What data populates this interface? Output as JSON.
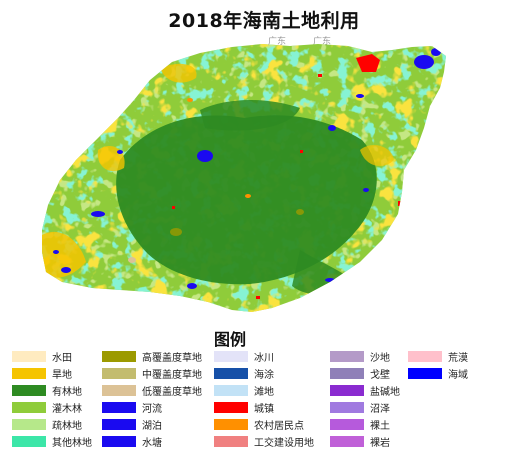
{
  "title": "2018年海南土地利用",
  "top_faint_labels": [
    "广东",
    "广东"
  ],
  "legend": {
    "title": "图例",
    "columns": [
      [
        {
          "label": "水田",
          "color": "#FFEBC0"
        },
        {
          "label": "旱地",
          "color": "#F5C400"
        },
        {
          "label": "有林地",
          "color": "#2E8B22"
        },
        {
          "label": "灌木林",
          "color": "#8FCC3A"
        },
        {
          "label": "疏林地",
          "color": "#B6E88A"
        },
        {
          "label": "其他林地",
          "color": "#3CE6A8"
        }
      ],
      [
        {
          "label": "高覆盖度草地",
          "color": "#9C9A00"
        },
        {
          "label": "中覆盖度草地",
          "color": "#C3BC6E"
        },
        {
          "label": "低覆盖度草地",
          "color": "#DCC296"
        },
        {
          "label": "河流",
          "color": "#1A0AF0"
        },
        {
          "label": "湖泊",
          "color": "#1A0AF0"
        },
        {
          "label": "水塘",
          "color": "#1A0AF0"
        }
      ],
      [
        {
          "label": "冰川",
          "color": "#E3E3F8"
        },
        {
          "label": "海涂",
          "color": "#1650A8"
        },
        {
          "label": "滩地",
          "color": "#C2E2F6"
        },
        {
          "label": "城镇",
          "color": "#FF0000"
        },
        {
          "label": "农村居民点",
          "color": "#FF9000"
        },
        {
          "label": "工交建设用地",
          "color": "#F08080"
        }
      ],
      [
        {
          "label": "沙地",
          "color": "#B49AC8"
        },
        {
          "label": "戈壁",
          "color": "#8F80B8"
        },
        {
          "label": "盐碱地",
          "color": "#8A2BD0"
        },
        {
          "label": "沼泽",
          "color": "#A07AE0"
        },
        {
          "label": "裸土",
          "color": "#B65ADC"
        },
        {
          "label": "裸岩",
          "color": "#C060D8"
        }
      ],
      [
        {
          "label": "荒漠",
          "color": "#FFC0CB"
        },
        {
          "label": "海域",
          "color": "#0000FF"
        }
      ]
    ]
  }
}
